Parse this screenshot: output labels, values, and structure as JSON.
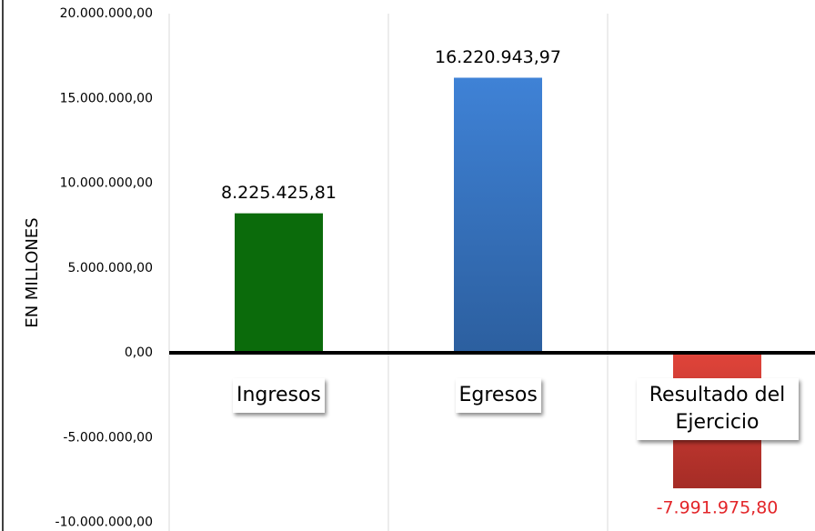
{
  "chart_data": {
    "type": "bar",
    "y_label": "EN MILLONES",
    "categories": [
      "Ingresos",
      "Egresos",
      "Resultado del Ejercicio"
    ],
    "values": [
      8225425.81,
      16220943.97,
      -7991975.8
    ],
    "value_labels": [
      "8.225.425,81",
      "16.220.943,97",
      "-7.991.975,80"
    ],
    "colors": [
      "#0b6b0b",
      "#3a7bcc",
      "#c0392f"
    ],
    "value_label_colors": [
      "#000000",
      "#000000",
      "#e3262a"
    ],
    "ylim": [
      -10000000,
      20000000
    ],
    "yticks": [
      {
        "value": -10000000,
        "label": "-10.000.000,00"
      },
      {
        "value": -5000000,
        "label": "-5.000.000,00"
      },
      {
        "value": 0,
        "label": "0,00"
      },
      {
        "value": 5000000,
        "label": "5.000.000,00"
      },
      {
        "value": 10000000,
        "label": "10.000.000,00"
      },
      {
        "value": 15000000,
        "label": "15.000.000,00"
      },
      {
        "value": 20000000,
        "label": "20.000.000,00"
      }
    ],
    "grid": false
  }
}
